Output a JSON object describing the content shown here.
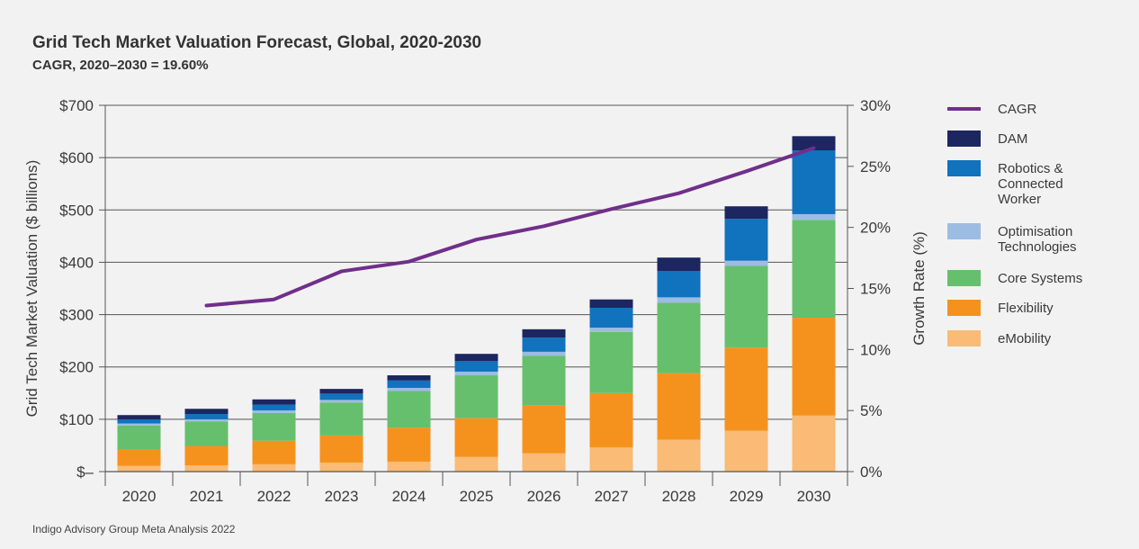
{
  "title": "Grid Tech Market Valuation Forecast, Global, 2020-2030",
  "subtitle": "CAGR, 2020–2030 = 19.60%",
  "source": "Indigo Advisory Group Meta Analysis 2022",
  "chart_data": {
    "type": "bar",
    "stacked": true,
    "title": "Grid Tech Market Valuation Forecast, Global, 2020-2030",
    "subtitle": "CAGR, 2020–2030 = 19.60%",
    "xlabel": "",
    "ylabel": "Grid Tech Market Valuation ($ billions)",
    "y2label": "Growth Rate (%)",
    "ylim": [
      0,
      700
    ],
    "y2lim": [
      0,
      30
    ],
    "yticks": [
      "$–",
      "$100",
      "$200",
      "$300",
      "$400",
      "$500",
      "$600",
      "$700"
    ],
    "y2ticks": [
      "0%",
      "5%",
      "10%",
      "15%",
      "20%",
      "25%",
      "30%"
    ],
    "grid": true,
    "legend_position": "right",
    "categories": [
      "2020",
      "2021",
      "2022",
      "2023",
      "2024",
      "2025",
      "2026",
      "2027",
      "2028",
      "2029",
      "2030"
    ],
    "series": [
      {
        "name": "eMobility",
        "color": "#f9bb75",
        "values": [
          11,
          12,
          14,
          17,
          19,
          28,
          35,
          46,
          61,
          78,
          107
        ]
      },
      {
        "name": "Flexibility",
        "color": "#f5921e",
        "values": [
          32,
          37,
          45,
          52,
          65,
          74,
          91,
          104,
          127,
          159,
          187
        ]
      },
      {
        "name": "Core Systems",
        "color": "#66bf6c",
        "values": [
          45,
          47,
          53,
          63,
          70,
          82,
          95,
          117,
          135,
          156,
          187
        ]
      },
      {
        "name": "Optimisation Technologies",
        "color": "#9dbce3",
        "values": [
          4,
          4,
          5,
          5,
          6,
          7,
          8,
          8,
          10,
          10,
          11
        ]
      },
      {
        "name": "Robotics & Connected Worker",
        "color": "#1172bd",
        "values": [
          8,
          10,
          11,
          12,
          14,
          20,
          27,
          38,
          50,
          80,
          122
        ]
      },
      {
        "name": "DAM",
        "color": "#1c2660",
        "values": [
          8,
          10,
          10,
          9,
          10,
          14,
          16,
          16,
          26,
          24,
          27
        ]
      }
    ],
    "line_series": {
      "name": "CAGR",
      "color": "#702f8a",
      "axis": "right",
      "x": [
        "2021",
        "2022",
        "2023",
        "2024",
        "2025",
        "2026",
        "2027",
        "2028",
        "2029",
        "2030"
      ],
      "values": [
        13.6,
        14.1,
        16.4,
        17.2,
        19.0,
        20.1,
        21.5,
        22.8,
        24.6,
        26.5
      ]
    },
    "legend_order": [
      "CAGR",
      "DAM",
      "Robotics & Connected Worker",
      "Optimisation Technologies",
      "Core Systems",
      "Flexibility",
      "eMobility"
    ]
  }
}
